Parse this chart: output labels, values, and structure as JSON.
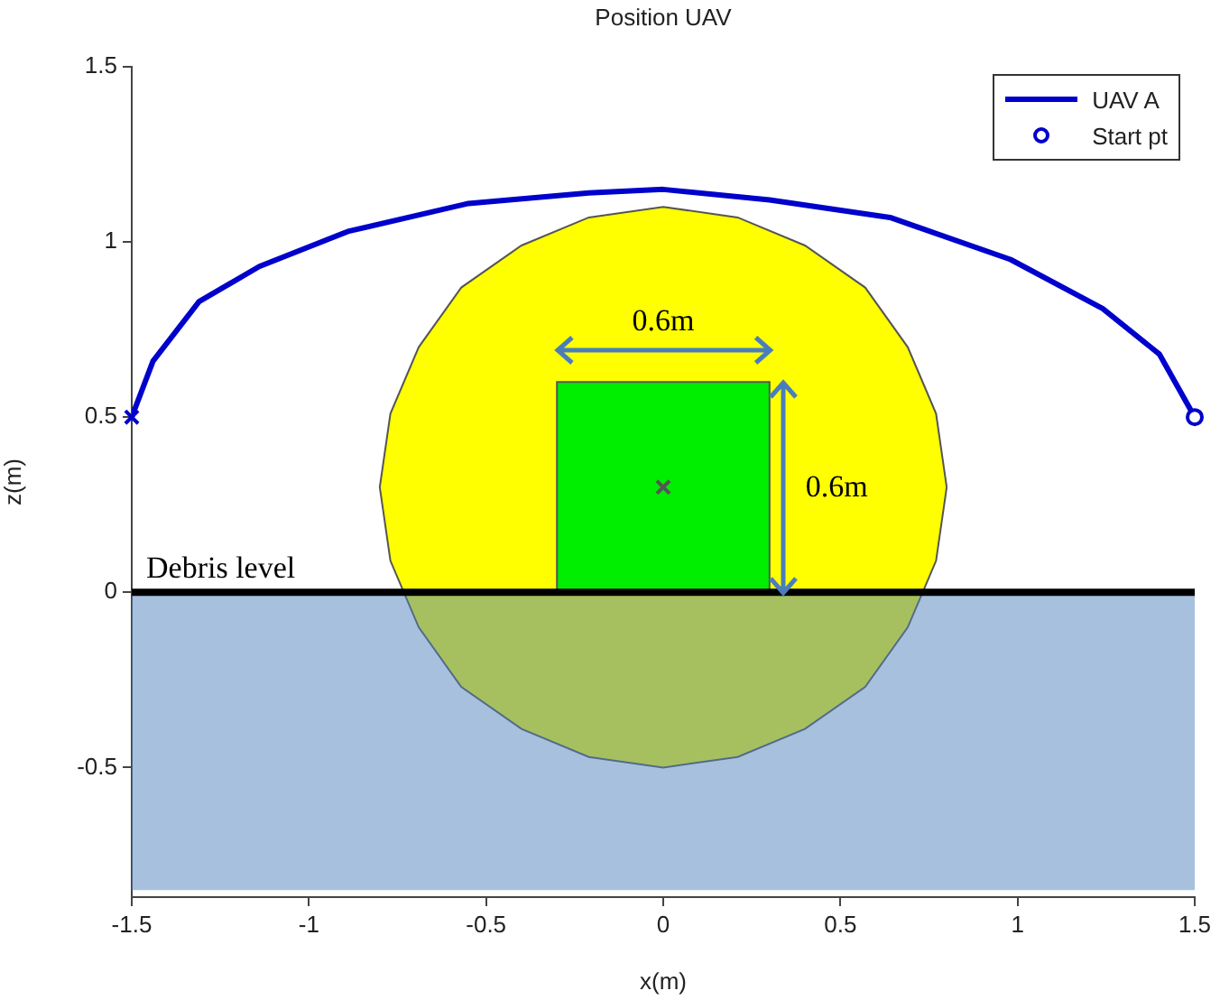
{
  "chart_data": {
    "type": "line",
    "title": "Position UAV",
    "xlabel": "x(m)",
    "ylabel": "z(m)",
    "xlim": [
      -1.5,
      1.5
    ],
    "xticks": [
      -1.5,
      -1,
      -0.5,
      0,
      0.5,
      1,
      1.5
    ],
    "ylim": [
      -0.87,
      1.5
    ],
    "yticks": [
      -0.5,
      0,
      0.5,
      1,
      1.5
    ],
    "grid": false,
    "legend": "top right",
    "series": [
      {
        "type": "area",
        "color": "#ffff00",
        "x": [
          0.8,
          0.77,
          0.69,
          0.57,
          0.4,
          0.21,
          0,
          -0.21,
          -0.4,
          -0.57,
          -0.69,
          -0.77,
          -0.8,
          -0.77,
          -0.69,
          -0.57,
          -0.4,
          -0.21,
          0,
          0.21,
          0.4,
          0.57,
          0.69,
          0.77,
          0.8
        ],
        "values": [
          0.3,
          0.51,
          0.7,
          0.87,
          0.99,
          1.07,
          1.1,
          1.07,
          0.99,
          0.87,
          0.7,
          0.51,
          0.3,
          0.09,
          -0.1,
          -0.27,
          -0.39,
          -0.47,
          -0.5,
          -0.47,
          -0.39,
          -0.27,
          -0.1,
          0.09,
          0.3
        ]
      },
      {
        "type": "area",
        "color": "#00ee00",
        "x": [
          -0.3,
          0.3,
          0.3,
          -0.3,
          -0.3
        ],
        "values": [
          0,
          0,
          0.6,
          0.6,
          0
        ]
      },
      {
        "type": "scatter",
        "color": "#555555",
        "marker": "cross",
        "x": [
          0
        ],
        "values": [
          0.3
        ]
      },
      {
        "name": "UAV A",
        "type": "line",
        "color": "#0000cc",
        "x": [
          -1.5,
          -1.44,
          -1.31,
          -1.14,
          -0.89,
          -0.55,
          -0.21,
          0,
          0.3,
          0.64,
          0.98,
          1.24,
          1.4,
          1.5
        ],
        "values": [
          0.5,
          0.66,
          0.83,
          0.93,
          1.03,
          1.11,
          1.14,
          1.15,
          1.12,
          1.07,
          0.95,
          0.81,
          0.68,
          0.5
        ]
      },
      {
        "type": "scatter",
        "color": "#0000cc",
        "marker": "cross",
        "x": [
          -1.5
        ],
        "values": [
          0.5
        ]
      },
      {
        "name": "Start pt",
        "type": "scatter",
        "color": "#0000cc",
        "marker": "circle",
        "x": [
          1.5
        ],
        "values": [
          0.5
        ]
      }
    ],
    "bands": [
      {
        "axis": "y",
        "from": -0.85,
        "to": 0,
        "color": "#4f81bd"
      }
    ],
    "ref_lines": [
      {
        "axis": "y",
        "value": 0,
        "label": "Debris level",
        "color": "#000000"
      }
    ],
    "annotations": [
      "0.6m",
      "0.6m"
    ]
  }
}
